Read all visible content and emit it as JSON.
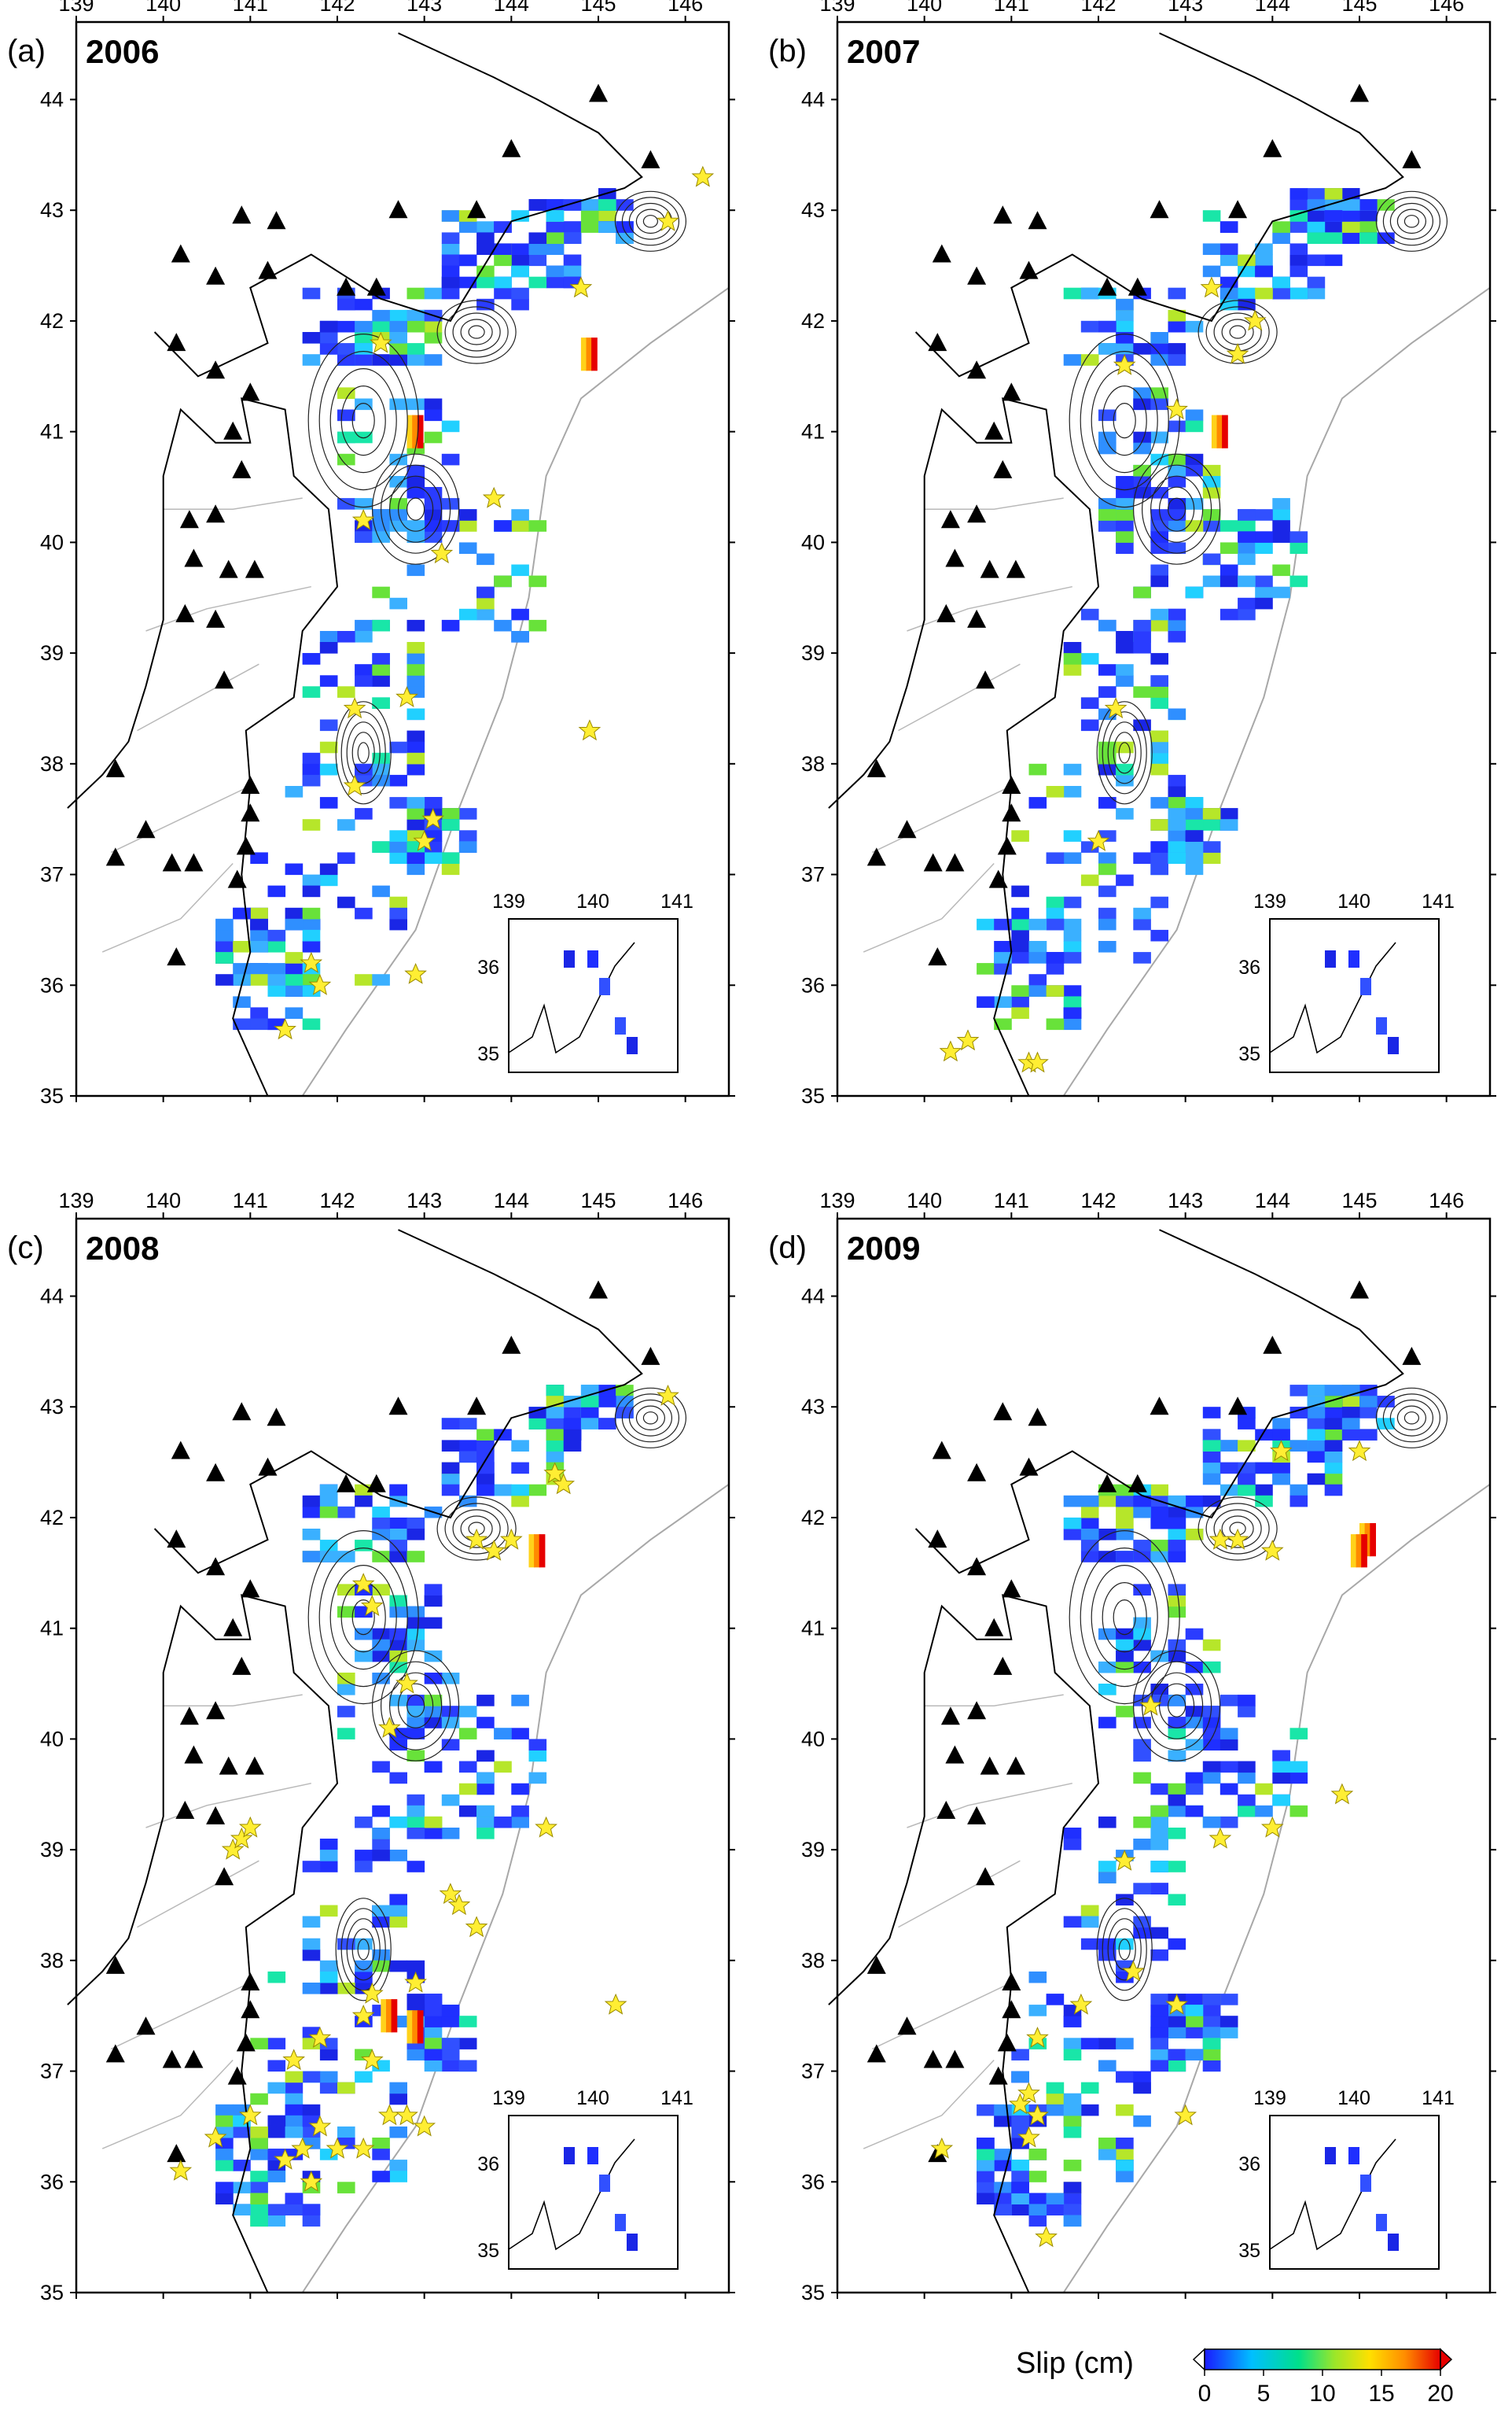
{
  "panels": [
    {
      "label": "(a)",
      "year": "2006"
    },
    {
      "label": "(b)",
      "year": "2007"
    },
    {
      "label": "(c)",
      "year": "2008"
    },
    {
      "label": "(d)",
      "year": "2009"
    }
  ],
  "axes": {
    "lon_ticks": [
      "139",
      "140",
      "141",
      "142",
      "143",
      "144",
      "145",
      "146"
    ],
    "lat_ticks": [
      "44",
      "43",
      "42",
      "41",
      "40",
      "39",
      "38",
      "37",
      "36",
      "35"
    ],
    "inset_lon_ticks": [
      "139",
      "140",
      "141"
    ],
    "inset_lat_ticks": [
      "36",
      "35"
    ]
  },
  "colorbar": {
    "title": "Slip (cm)",
    "ticks": [
      "0",
      "5",
      "10",
      "15",
      "20"
    ],
    "colors": [
      "#1a1aff",
      "#00bfff",
      "#00e08a",
      "#9ae62a",
      "#ffe000",
      "#ff8c00",
      "#e60000"
    ]
  },
  "symbols": {
    "volcano": "black-triangle-icon",
    "earthquake": "yellow-star-icon",
    "slip_cell_color": "#1f3cff",
    "star_color": "#ffee33"
  }
}
